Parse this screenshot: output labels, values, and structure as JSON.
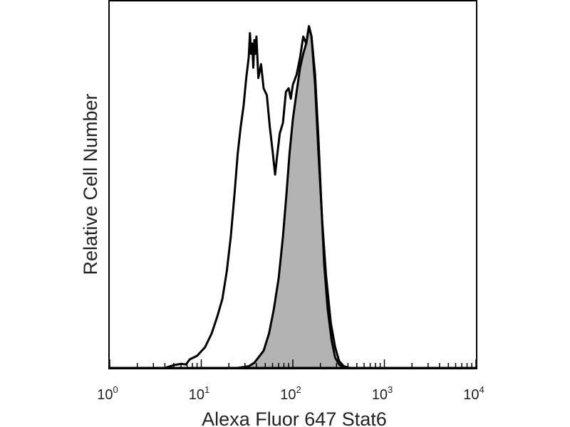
{
  "chart_data": {
    "type": "area",
    "xscale": "log",
    "xlim": [
      1,
      10000
    ],
    "ylim": [
      0,
      100
    ],
    "xlabel": "Alexa Fluor 647 Stat6",
    "ylabel": "Relative Cell Number",
    "xticks": [
      {
        "value": 1,
        "base": "10",
        "exp": "0"
      },
      {
        "value": 10,
        "base": "10",
        "exp": "1"
      },
      {
        "value": 100,
        "base": "10",
        "exp": "2"
      },
      {
        "value": 1000,
        "base": "10",
        "exp": "3"
      },
      {
        "value": 10000,
        "base": "10",
        "exp": "4"
      }
    ],
    "grid": false,
    "legend": "none",
    "series": [
      {
        "style": "outline",
        "color": "#000000",
        "points": [
          [
            1,
            0
          ],
          [
            4,
            0
          ],
          [
            5,
            0.8
          ],
          [
            6,
            1.2
          ],
          [
            6.8,
            1
          ],
          [
            7.5,
            2.5
          ],
          [
            9,
            3.5
          ],
          [
            11,
            6
          ],
          [
            13,
            10
          ],
          [
            15,
            15
          ],
          [
            17,
            20
          ],
          [
            19,
            28
          ],
          [
            21,
            38
          ],
          [
            23,
            50
          ],
          [
            25,
            62
          ],
          [
            27,
            70
          ],
          [
            29,
            76
          ],
          [
            31,
            84
          ],
          [
            33,
            90
          ],
          [
            34,
            97
          ],
          [
            35,
            91
          ],
          [
            36,
            94
          ],
          [
            37,
            87
          ],
          [
            38,
            95
          ],
          [
            39,
            91
          ],
          [
            40,
            96
          ],
          [
            42,
            84
          ],
          [
            45,
            88
          ],
          [
            48,
            81
          ],
          [
            52,
            79
          ],
          [
            56,
            70
          ],
          [
            60,
            63
          ],
          [
            64,
            56
          ],
          [
            67,
            61
          ],
          [
            72,
            68
          ],
          [
            78,
            71
          ],
          [
            84,
            80
          ],
          [
            90,
            81
          ],
          [
            95,
            78
          ],
          [
            100,
            82
          ],
          [
            110,
            85
          ],
          [
            120,
            90
          ],
          [
            130,
            96
          ],
          [
            140,
            94
          ],
          [
            150,
            99
          ],
          [
            160,
            96
          ],
          [
            175,
            82
          ],
          [
            190,
            63
          ],
          [
            210,
            42
          ],
          [
            230,
            27
          ],
          [
            260,
            13
          ],
          [
            290,
            6
          ],
          [
            320,
            2
          ],
          [
            360,
            0.5
          ],
          [
            420,
            0
          ],
          [
            10000,
            0
          ]
        ]
      },
      {
        "style": "filled",
        "color": "#000000",
        "fill": "#b3b3b3",
        "points": [
          [
            1,
            0
          ],
          [
            10,
            0
          ],
          [
            25,
            0
          ],
          [
            33,
            0.5
          ],
          [
            38,
            1.5
          ],
          [
            42,
            3
          ],
          [
            48,
            5
          ],
          [
            55,
            10
          ],
          [
            62,
            17
          ],
          [
            70,
            26
          ],
          [
            78,
            38
          ],
          [
            85,
            50
          ],
          [
            92,
            62
          ],
          [
            100,
            72
          ],
          [
            110,
            80
          ],
          [
            120,
            87
          ],
          [
            130,
            91
          ],
          [
            140,
            94
          ],
          [
            150,
            99
          ],
          [
            160,
            96
          ],
          [
            175,
            85
          ],
          [
            190,
            67
          ],
          [
            205,
            47
          ],
          [
            220,
            30
          ],
          [
            240,
            17
          ],
          [
            265,
            8
          ],
          [
            290,
            3
          ],
          [
            320,
            1
          ],
          [
            360,
            0
          ],
          [
            10000,
            0
          ]
        ]
      }
    ]
  }
}
